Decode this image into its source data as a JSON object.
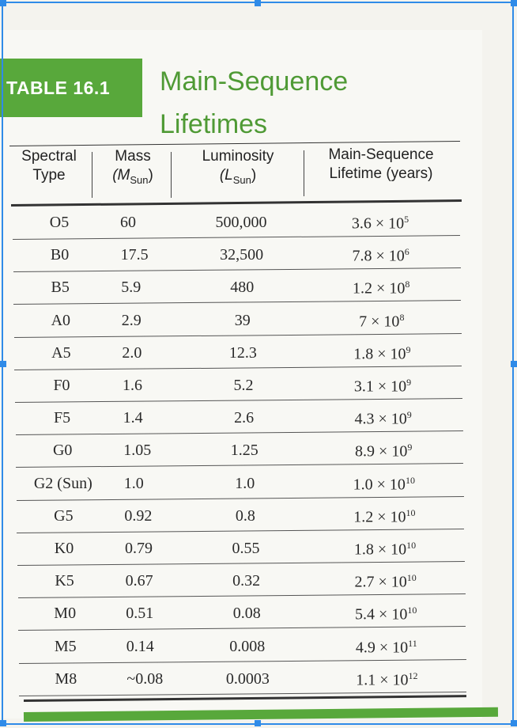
{
  "table_tag": "TABLE 16.1",
  "title_line1": "Main-Sequence",
  "title_line2": "Lifetimes",
  "headers": {
    "spectral": [
      "Spectral",
      "Type"
    ],
    "mass": [
      "Mass",
      "(M",
      "Sun",
      ")"
    ],
    "luminosity": [
      "Luminosity",
      "(L",
      "Sun",
      ")"
    ],
    "lifetime": [
      "Main-Sequence",
      "Lifetime (years)"
    ]
  },
  "rows": [
    {
      "type": "O5",
      "mass": "60",
      "lum": "500,000",
      "life_base": "3.6 × 10",
      "life_exp": "5"
    },
    {
      "type": "B0",
      "mass": "17.5",
      "lum": "32,500",
      "life_base": "7.8 × 10",
      "life_exp": "6"
    },
    {
      "type": "B5",
      "mass": "5.9",
      "lum": "480",
      "life_base": "1.2 × 10",
      "life_exp": "8"
    },
    {
      "type": "A0",
      "mass": "2.9",
      "lum": "39",
      "life_base": "7 × 10",
      "life_exp": "8"
    },
    {
      "type": "A5",
      "mass": "2.0",
      "lum": "12.3",
      "life_base": "1.8 × 10",
      "life_exp": "9"
    },
    {
      "type": "F0",
      "mass": "1.6",
      "lum": "5.2",
      "life_base": "3.1 × 10",
      "life_exp": "9"
    },
    {
      "type": "F5",
      "mass": "1.4",
      "lum": "2.6",
      "life_base": "4.3 × 10",
      "life_exp": "9"
    },
    {
      "type": "G0",
      "mass": "1.05",
      "lum": "1.25",
      "life_base": "8.9 × 10",
      "life_exp": "9"
    },
    {
      "type": "G2 (Sun)",
      "mass": "1.0",
      "lum": "1.0",
      "life_base": "1.0 × 10",
      "life_exp": "10"
    },
    {
      "type": "G5",
      "mass": "0.92",
      "lum": "0.8",
      "life_base": "1.2 × 10",
      "life_exp": "10"
    },
    {
      "type": "K0",
      "mass": "0.79",
      "lum": "0.55",
      "life_base": "1.8 × 10",
      "life_exp": "10"
    },
    {
      "type": "K5",
      "mass": "0.67",
      "lum": "0.32",
      "life_base": "2.7 × 10",
      "life_exp": "10"
    },
    {
      "type": "M0",
      "mass": "0.51",
      "lum": "0.08",
      "life_base": "5.4 × 10",
      "life_exp": "10"
    },
    {
      "type": "M5",
      "mass": "0.14",
      "lum": "0.008",
      "life_base": "4.9 × 10",
      "life_exp": "11"
    },
    {
      "type": "M8",
      "mass": "~0.08",
      "lum": "0.0003",
      "life_base": "1.1 × 10",
      "life_exp": "12"
    }
  ],
  "colors": {
    "accent_green": "#58a83b",
    "selection_blue": "#2f8be8"
  }
}
